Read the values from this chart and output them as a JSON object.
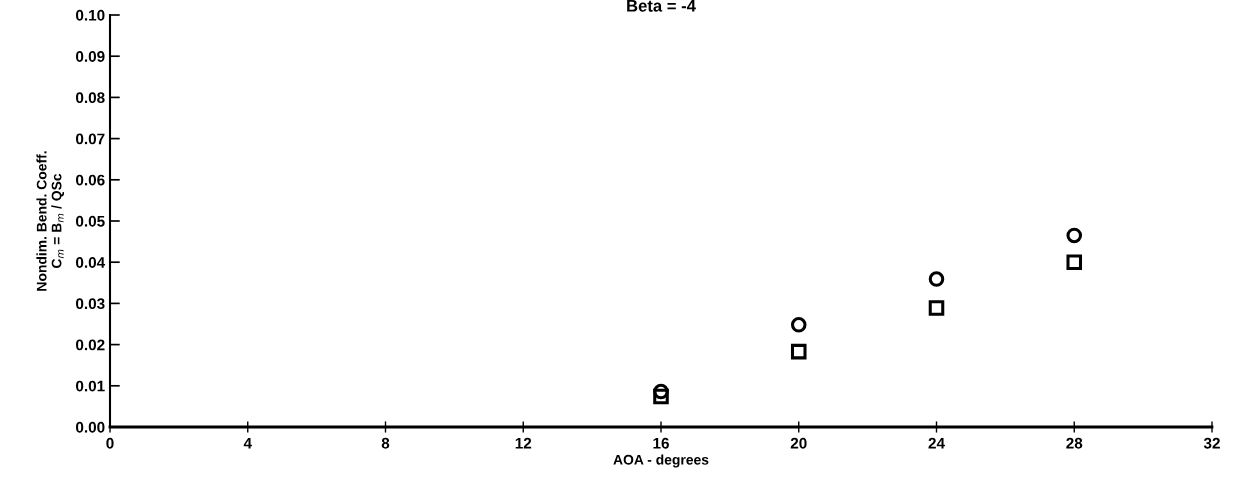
{
  "chart_data": {
    "type": "scatter",
    "title": "Beta = -4",
    "xlabel": "AOA - degrees",
    "ylabel": "Nondim. Bend. Coeff.\nC$_{m}$ = B$_{m}$ / QSc",
    "xlim": [
      0,
      32
    ],
    "xticks": [
      0,
      4,
      8,
      12,
      16,
      20,
      24,
      28,
      32
    ],
    "ylim": [
      0,
      0.1
    ],
    "yticks": [
      {
        "value": 0,
        "label": "0.00"
      },
      {
        "value": 0.01,
        "label": "0.01"
      },
      {
        "value": 0.02,
        "label": "0.02"
      },
      {
        "value": 0.03,
        "label": "0.03"
      },
      {
        "value": 0.04,
        "label": "0.04"
      },
      {
        "value": 0.05,
        "label": "0.05"
      },
      {
        "value": 0.06,
        "label": "0.06"
      },
      {
        "value": 0.07,
        "label": "0.07"
      },
      {
        "value": 0.08,
        "label": "0.08"
      },
      {
        "value": 0.09,
        "label": "0.09"
      },
      {
        "value": 0.1,
        "label": "0.10"
      }
    ],
    "grid": false,
    "legend": false,
    "series": [
      {
        "color": "#000000",
        "marker": "circle",
        "x": [
          16,
          20,
          24,
          28
        ],
        "values": [
          0.0086,
          0.0248,
          0.0359,
          0.0465
        ]
      },
      {
        "color": "#000000",
        "marker": "square",
        "x": [
          16,
          20,
          24,
          28
        ],
        "values": [
          0.0074,
          0.0183,
          0.0289,
          0.04
        ]
      }
    ]
  }
}
